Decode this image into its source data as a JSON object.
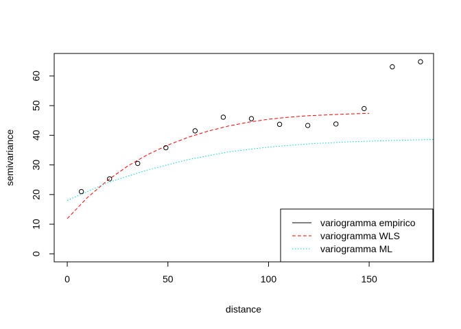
{
  "chart_data": {
    "type": "scatter",
    "title": "",
    "xlabel": "distance",
    "ylabel": "semivariance",
    "xlim": [
      -6.5,
      182
    ],
    "ylim": [
      -2.7,
      67.6
    ],
    "x_ticks": [
      0,
      50,
      100,
      150
    ],
    "y_ticks": [
      0,
      10,
      20,
      30,
      40,
      50,
      60
    ],
    "grid": false,
    "legend_position": "bottom-right",
    "empirical_points": {
      "x": [
        7,
        21,
        35,
        49,
        63.5,
        77.5,
        91.5,
        105.5,
        119.5,
        133.5,
        147.5,
        161.5,
        175.5
      ],
      "y": [
        21.0,
        25.3,
        30.5,
        35.8,
        41.5,
        46.1,
        45.6,
        43.7,
        43.3,
        43.8,
        49.0,
        63.1,
        64.8
      ]
    },
    "series": [
      {
        "name": "variogramma empirico",
        "color": "#000000",
        "line_style": "solid",
        "x": [],
        "y": []
      },
      {
        "name": "variogramma WLS",
        "color": "#ff0000",
        "line_style": "dashed",
        "x": [
          0,
          10,
          20,
          30,
          40,
          50,
          60,
          70,
          80,
          90,
          100,
          110,
          120,
          130,
          140,
          150
        ],
        "y": [
          11.9,
          19.0,
          24.8,
          29.6,
          33.5,
          36.7,
          39.3,
          41.4,
          43.1,
          44.4,
          45.4,
          46.1,
          46.6,
          46.9,
          47.2,
          47.4
        ]
      },
      {
        "name": "variogramma ML",
        "color": "#00cccc",
        "line_style": "dotted",
        "x": [
          0,
          20,
          40,
          60,
          80,
          100,
          120,
          140,
          160,
          182
        ],
        "y": [
          18.0,
          24.0,
          28.3,
          31.8,
          34.4,
          36.0,
          37.1,
          37.8,
          38.2,
          38.6
        ]
      }
    ]
  }
}
